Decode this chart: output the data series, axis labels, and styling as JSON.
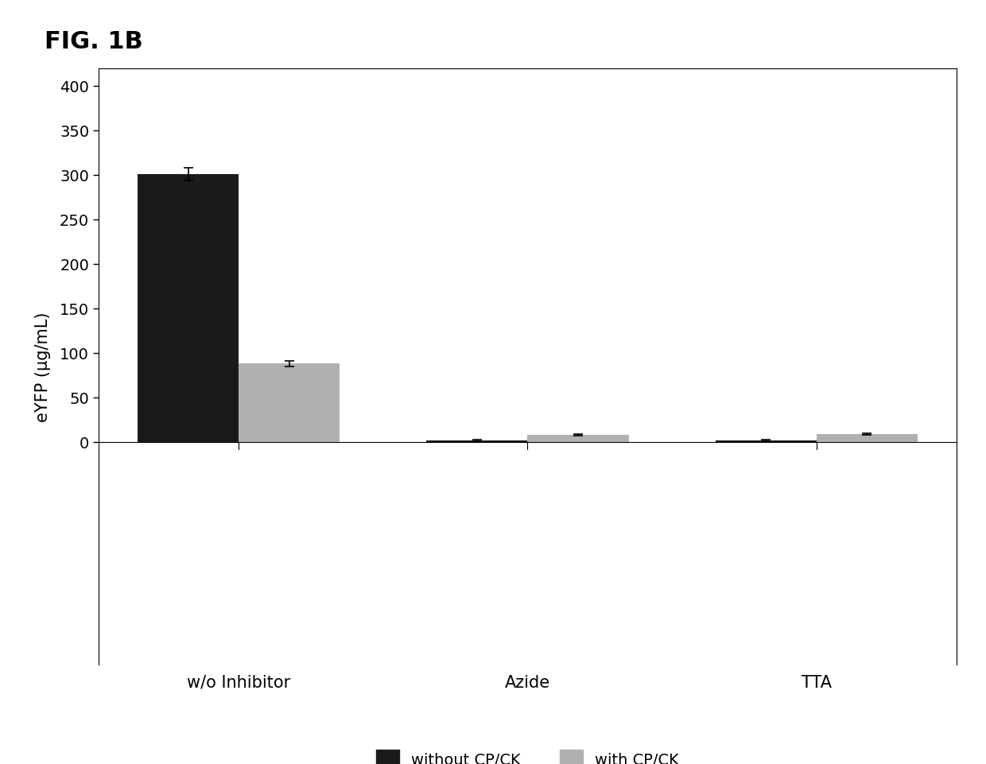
{
  "title": "FIG. 1B",
  "categories": [
    "w/o Inhibitor",
    "Azide",
    "TTA"
  ],
  "without_cpck": [
    301,
    2,
    2
  ],
  "with_cpck": [
    88,
    8,
    9
  ],
  "without_cpck_err": [
    7,
    1,
    1
  ],
  "with_cpck_err": [
    3,
    1,
    1
  ],
  "ylabel": "eYFP (µg/mL)",
  "ylim": [
    -250,
    420
  ],
  "yticks": [
    0,
    50,
    100,
    150,
    200,
    250,
    300,
    350,
    400
  ],
  "color_without": "#1a1a1a",
  "color_with": "#b0b0b0",
  "bar_width": 0.35,
  "legend_labels": [
    "without CP/CK",
    "with CP/CK"
  ],
  "background_color": "#ffffff",
  "fig_label": "FIG. 1B"
}
